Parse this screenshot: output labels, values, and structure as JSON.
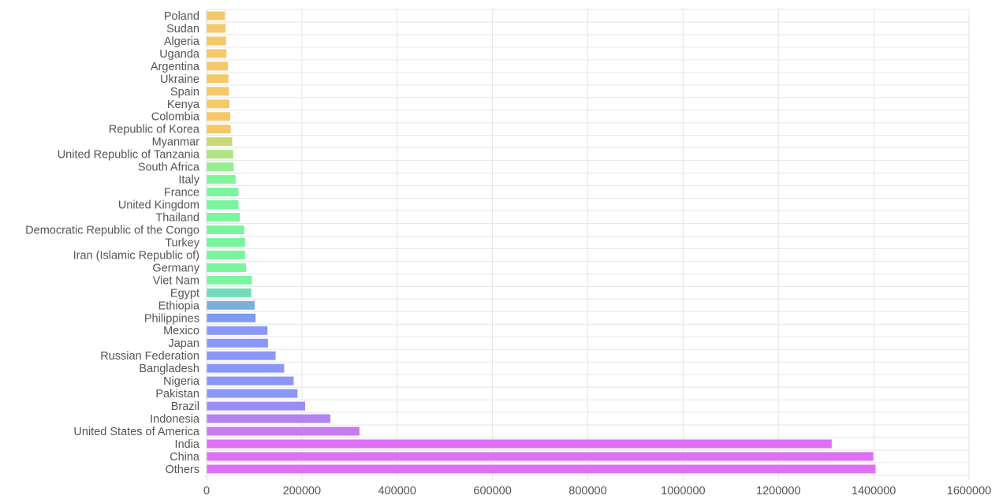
{
  "chart_data": {
    "type": "bar",
    "orientation": "horizontal",
    "title": "",
    "xlabel": "",
    "ylabel": "",
    "xlim": [
      0,
      1600000
    ],
    "x_ticks": [
      "0",
      "200000",
      "400000",
      "600000",
      "800000",
      "1000000",
      "1200000",
      "1400000",
      "1600000"
    ],
    "grid": true,
    "legend": "none",
    "categories": [
      "Poland",
      "Sudan",
      "Algeria",
      "Uganda",
      "Argentina",
      "Ukraine",
      "Spain",
      "Kenya",
      "Colombia",
      "Republic of Korea",
      "Myanmar",
      "United Republic of Tanzania",
      "South Africa",
      "Italy",
      "France",
      "United Kingdom",
      "Thailand",
      "Democratic Republic of the Congo",
      "Turkey",
      "Iran (Islamic Republic of)",
      "Germany",
      "Viet Nam",
      "Egypt",
      "Ethiopia",
      "Philippines",
      "Mexico",
      "Japan",
      "Russian Federation",
      "Bangladesh",
      "Nigeria",
      "Pakistan",
      "Brazil",
      "Indonesia",
      "United States of America",
      "India",
      "China",
      "Others"
    ],
    "values": [
      38000,
      39000,
      40000,
      41000,
      44000,
      45000,
      46000,
      47000,
      49000,
      50000,
      53000,
      55000,
      56000,
      60000,
      66000,
      66000,
      69000,
      78000,
      80000,
      80000,
      82000,
      94000,
      93000,
      100000,
      102000,
      127000,
      128000,
      144000,
      162000,
      182000,
      190000,
      206000,
      259000,
      320000,
      1311000,
      1398000,
      1403000
    ],
    "colors": [
      "#f5c86a",
      "#f5c86a",
      "#f5c86a",
      "#f5c86a",
      "#f5c86a",
      "#f5c86a",
      "#f5c86a",
      "#f5c86a",
      "#f5c86a",
      "#f5c86a",
      "#c9d876",
      "#b0e484",
      "#95ee90",
      "#80f59a",
      "#7af59e",
      "#7af59e",
      "#7af59e",
      "#7af59e",
      "#7af59e",
      "#7af59e",
      "#7af59e",
      "#7af5a0",
      "#70ddb8",
      "#7aaedc",
      "#7f9af2",
      "#8a97f8",
      "#8a97f8",
      "#8a97f8",
      "#8a97f8",
      "#8a97f8",
      "#8a97f8",
      "#9a8cf5",
      "#b282f0",
      "#c77cf0",
      "#df70f5",
      "#df70f5",
      "#df70f5"
    ]
  }
}
